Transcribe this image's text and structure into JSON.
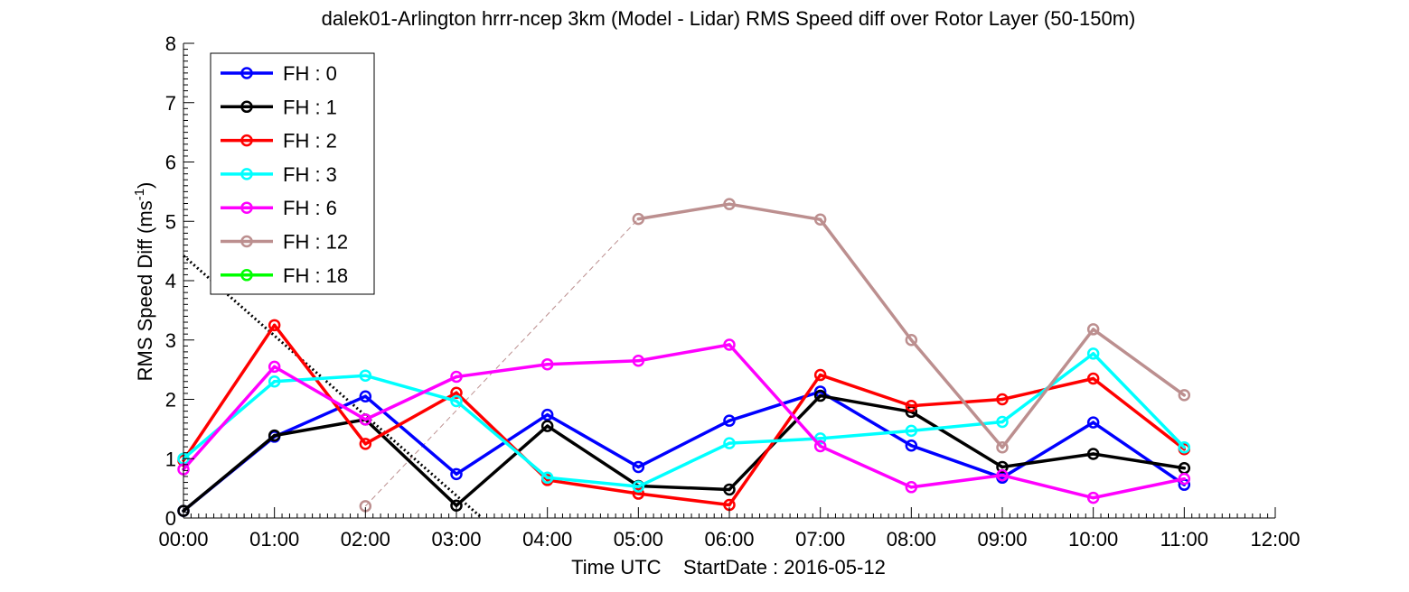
{
  "chart_data": {
    "type": "line",
    "title": "dalek01-Arlington hrrr-ncep 3km (Model - Lidar) RMS Speed diff over Rotor Layer (50-150m)",
    "xlabel": "Time UTC    StartDate : 2016-05-12",
    "ylabel_main": "RMS Speed Diff (ms",
    "ylabel_sup": "-1",
    "ylabel_close": ")",
    "x_ticks": [
      "00:00",
      "01:00",
      "02:00",
      "03:00",
      "04:00",
      "05:00",
      "06:00",
      "07:00",
      "08:00",
      "09:00",
      "10:00",
      "11:00",
      "12:00"
    ],
    "y_ticks": [
      "0",
      "1",
      "2",
      "3",
      "4",
      "5",
      "6",
      "7",
      "8"
    ],
    "xlim": [
      0,
      12
    ],
    "ylim": [
      0,
      8
    ],
    "legend_position": "top-left",
    "series": [
      {
        "name": "FH : 0",
        "color": "#0000ff",
        "points": [
          [
            0,
            0.12
          ],
          [
            1,
            1.37
          ],
          [
            2,
            2.05
          ],
          [
            3,
            0.74
          ],
          [
            4,
            1.74
          ],
          [
            5,
            0.86
          ],
          [
            6,
            1.64
          ],
          [
            7,
            2.13
          ],
          [
            8,
            1.22
          ],
          [
            9,
            0.68
          ],
          [
            10,
            1.61
          ],
          [
            11,
            0.56
          ]
        ]
      },
      {
        "name": "FH : 1",
        "color": "#000000",
        "points": [
          [
            0,
            0.12
          ],
          [
            1,
            1.39
          ],
          [
            2,
            1.66
          ],
          [
            3,
            0.21
          ],
          [
            4,
            1.55
          ],
          [
            5,
            0.54
          ],
          [
            6,
            0.48
          ],
          [
            7,
            2.06
          ],
          [
            8,
            1.79
          ],
          [
            9,
            0.86
          ],
          [
            10,
            1.08
          ],
          [
            11,
            0.84
          ]
        ]
      },
      {
        "name": "FH : 2",
        "color": "#ff0000",
        "points": [
          [
            0,
            0.97
          ],
          [
            1,
            3.25
          ],
          [
            2,
            1.25
          ],
          [
            3,
            2.11
          ],
          [
            4,
            0.64
          ],
          [
            5,
            0.41
          ],
          [
            6,
            0.22
          ],
          [
            7,
            2.41
          ],
          [
            8,
            1.89
          ],
          [
            9,
            2.0
          ],
          [
            10,
            2.35
          ],
          [
            11,
            1.16
          ]
        ]
      },
      {
        "name": "FH : 3",
        "color": "#00ffff",
        "points": [
          [
            0,
            1.0
          ],
          [
            1,
            2.3
          ],
          [
            2,
            2.4
          ],
          [
            3,
            1.97
          ],
          [
            4,
            0.68
          ],
          [
            5,
            0.53
          ],
          [
            6,
            1.26
          ],
          [
            7,
            1.34
          ],
          [
            8,
            1.47
          ],
          [
            9,
            1.62
          ],
          [
            10,
            2.77
          ],
          [
            11,
            1.19
          ]
        ]
      },
      {
        "name": "FH : 6",
        "color": "#ff00ff",
        "points": [
          [
            0,
            0.82
          ],
          [
            1,
            2.55
          ],
          [
            2,
            1.66
          ],
          [
            3,
            2.38
          ],
          [
            4,
            2.59
          ],
          [
            5,
            2.65
          ],
          [
            6,
            2.92
          ],
          [
            7,
            1.21
          ],
          [
            8,
            0.52
          ],
          [
            9,
            0.72
          ],
          [
            10,
            0.34
          ],
          [
            11,
            0.66
          ]
        ]
      },
      {
        "name": "FH : 12",
        "color": "#bc8f8f",
        "points": [
          [
            2,
            0.2
          ],
          [
            5,
            5.04
          ],
          [
            6,
            5.29
          ],
          [
            7,
            5.03
          ],
          [
            8,
            3.0
          ],
          [
            9,
            1.19
          ],
          [
            10,
            3.18
          ],
          [
            11,
            2.07
          ]
        ]
      },
      {
        "name": "FH : 18",
        "color": "#00ff00",
        "points": []
      }
    ],
    "dashed_connector": {
      "color": "#bc8f8f",
      "from": [
        2,
        0.2
      ],
      "to": [
        5,
        5.04
      ]
    },
    "dotted_trend": {
      "color": "#000000",
      "from": [
        0,
        4.42
      ],
      "to": [
        3.28,
        0
      ]
    }
  }
}
